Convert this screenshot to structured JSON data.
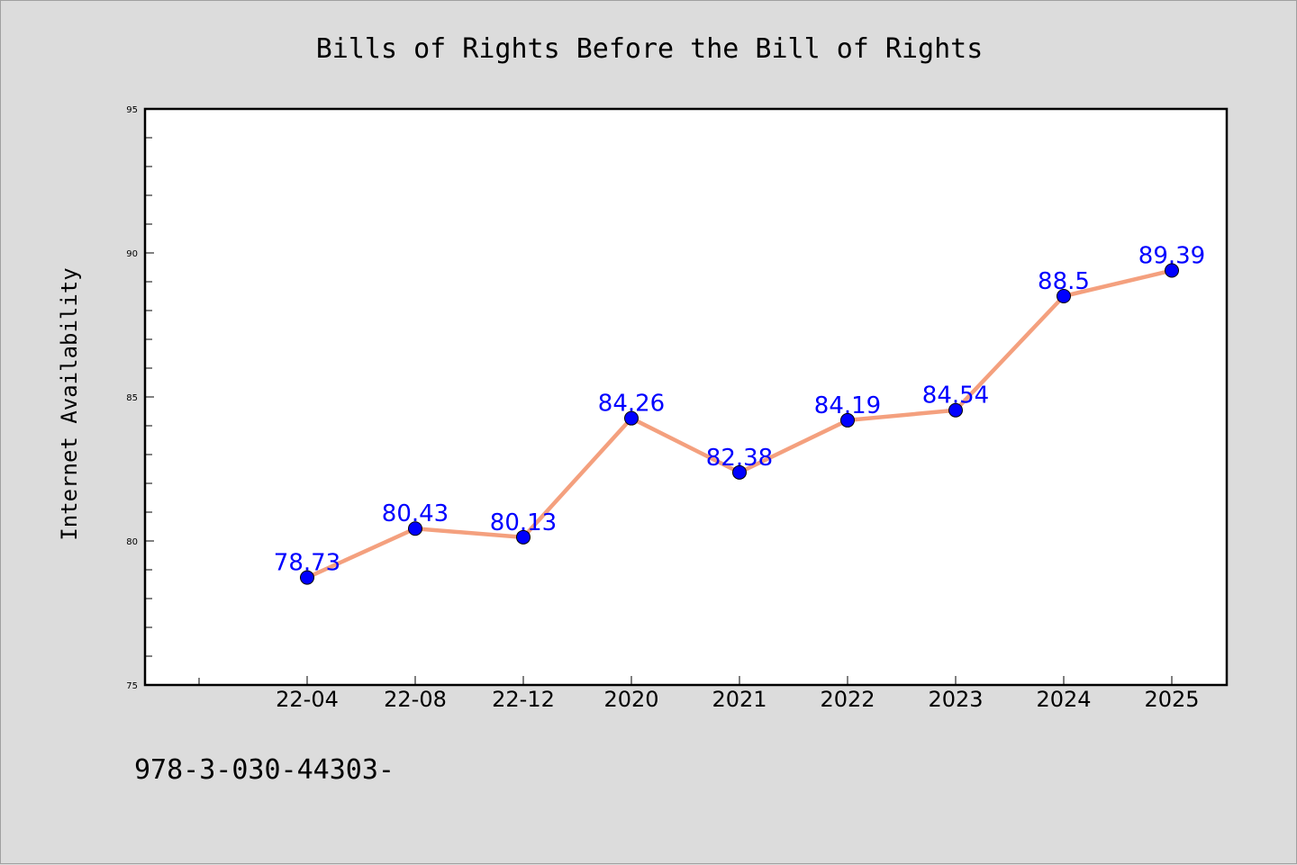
{
  "chart_data": {
    "type": "line",
    "title": "Bills of Rights Before the Bill of Rights",
    "xlabel": "",
    "ylabel": "Internet Availability",
    "categories": [
      "22-04",
      "22-08",
      "22-12",
      "2020",
      "2021",
      "2022",
      "2023",
      "2024",
      "2025"
    ],
    "series": [
      {
        "values": [
          78.73,
          80.43,
          80.13,
          84.26,
          82.38,
          84.19,
          84.54,
          88.5,
          89.39
        ],
        "data_labels": [
          "78.73",
          "80.43",
          "80.13",
          "84.26",
          "82.38",
          "84.19",
          "84.54",
          "88.5",
          "89.39"
        ],
        "line_color": "#f4a07e",
        "marker_color": "#0000ff"
      }
    ],
    "ylim": [
      75,
      95
    ],
    "yticks": [
      "75",
      "80",
      "85",
      "90",
      "95"
    ],
    "grid": false,
    "legend": "none"
  },
  "footer_text": "978-3-030-44303-"
}
